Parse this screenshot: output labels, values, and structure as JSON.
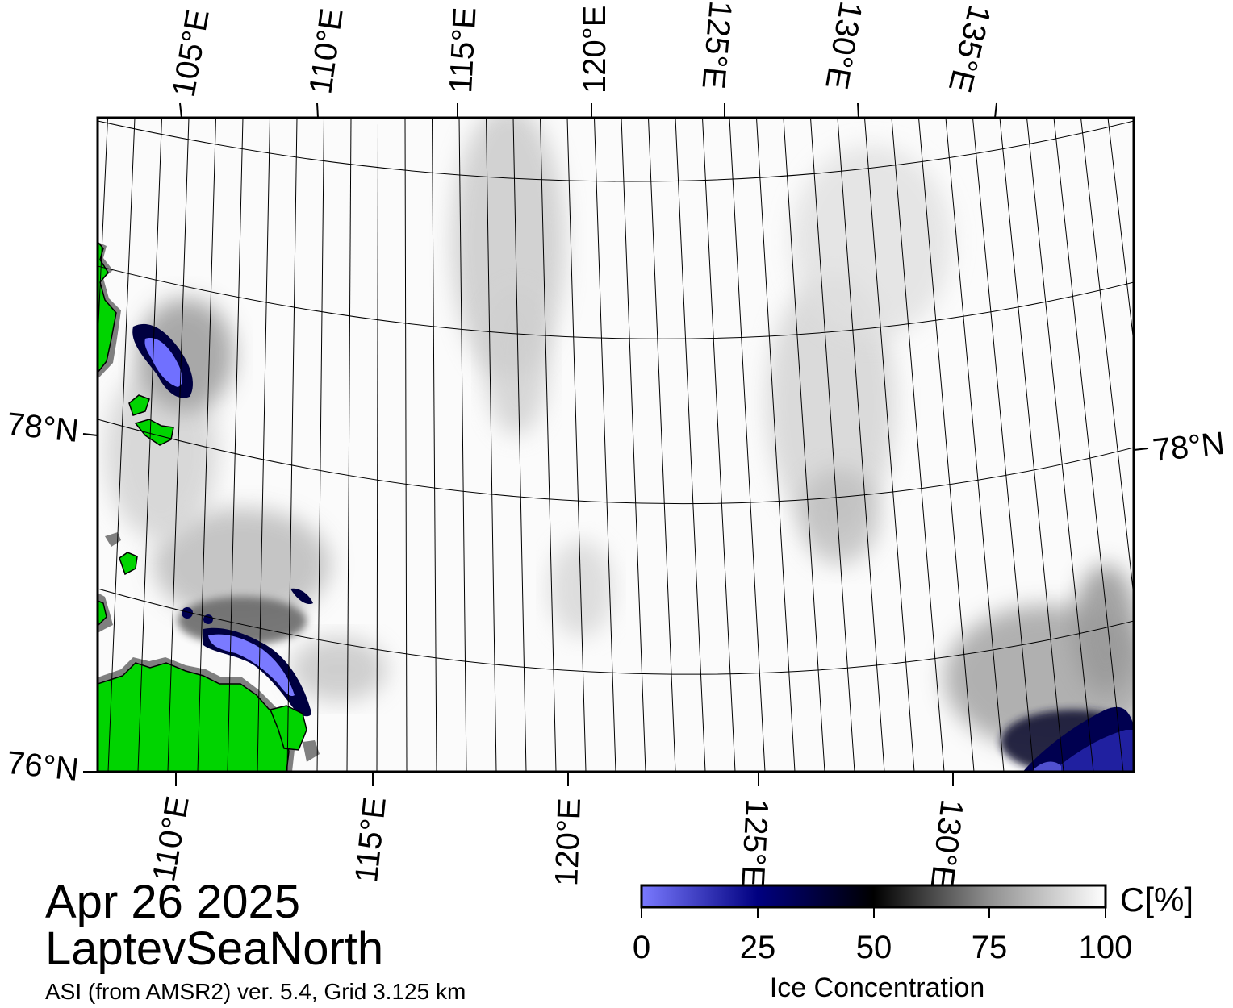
{
  "map": {
    "top_lon_labels": [
      "105°E",
      "110°E",
      "115°E",
      "120°E",
      "125°E",
      "130°E",
      "135°E"
    ],
    "bottom_lon_labels": [
      "110°E",
      "115°E",
      "120°E",
      "125°E",
      "130°E"
    ],
    "left_lat_labels": [
      "78°N",
      "76°N"
    ],
    "right_lat_labels": [
      "78°N"
    ],
    "colors": {
      "land": "#00d400",
      "coast_gray": "#7f7f7f",
      "open_water": "#6a6aff",
      "dark_ice": "#000040"
    }
  },
  "info": {
    "date": "Apr 26 2025",
    "region": "LaptevSeaNorth",
    "product": "ASI (from AMSR2) ver. 5.4,  Grid 3.125 km"
  },
  "colorbar": {
    "unit_label": "C[%]",
    "ticks": [
      "0",
      "25",
      "50",
      "75",
      "100"
    ],
    "title": "Ice Concentration"
  }
}
